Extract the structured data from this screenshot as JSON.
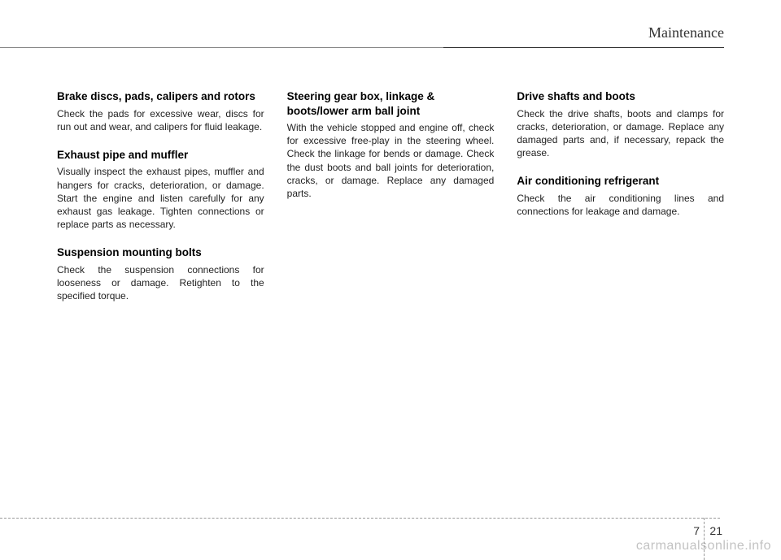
{
  "header": {
    "title": "Maintenance"
  },
  "columns": {
    "left": {
      "sections": [
        {
          "heading": "Brake discs, pads, calipers and rotors",
          "body": "Check the pads for excessive wear, discs for run out and wear, and calipers for fluid leakage."
        },
        {
          "heading": "Exhaust pipe and muffler",
          "body": "Visually inspect the exhaust pipes, muffler and hangers for cracks, deterioration, or damage. Start the engine and listen carefully for any exhaust gas leakage. Tighten connections or replace parts as necessary."
        },
        {
          "heading": "Suspension mounting bolts",
          "body": "Check the suspension connections for looseness or damage. Retighten to the specified torque."
        }
      ]
    },
    "middle": {
      "sections": [
        {
          "heading": "Steering gear box, linkage & boots/lower arm ball joint",
          "body": "With the vehicle stopped and engine off, check for excessive free-play in the steering wheel.\nCheck the linkage for bends or damage. Check the dust boots and ball joints for deterioration, cracks, or damage. Replace any damaged parts."
        }
      ]
    },
    "right": {
      "sections": [
        {
          "heading": "Drive shafts and boots",
          "body": "Check the drive shafts, boots and clamps for cracks, deterioration, or damage. Replace any damaged parts and, if necessary, repack the grease."
        },
        {
          "heading": "Air conditioning refrigerant",
          "body": "Check the air conditioning lines and connections for leakage and damage."
        }
      ]
    }
  },
  "footer": {
    "chapter": "7",
    "page": "21"
  },
  "watermark": "carmanualsonline.info"
}
